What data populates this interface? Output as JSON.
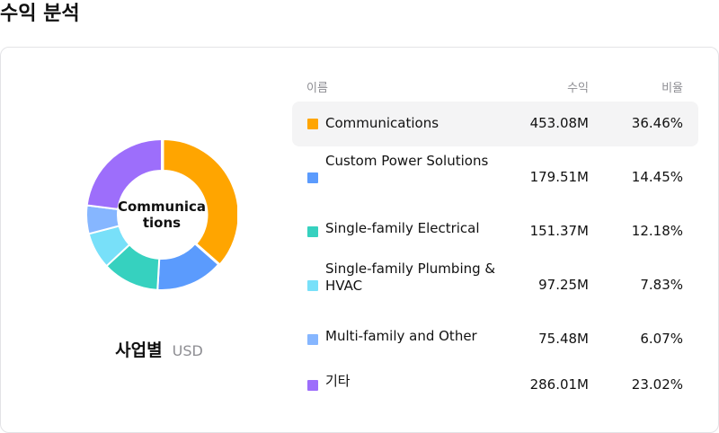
{
  "page": {
    "title": "수익 분석"
  },
  "chart_data": {
    "type": "pie",
    "center_label": "Communications",
    "caption": "사업별",
    "unit": "USD",
    "columns": {
      "name": "이름",
      "value": "수익",
      "percent": "비율"
    },
    "rows": [
      {
        "name": "Communications",
        "value": 453.08,
        "value_label": "453.08M",
        "percent_label": "36.46%",
        "color": "#FFA500"
      },
      {
        "name": "Custom Power Solutions",
        "value": 179.51,
        "value_label": "179.51M",
        "percent_label": "14.45%",
        "color": "#5B9BFD"
      },
      {
        "name": "Single-family Electrical",
        "value": 151.37,
        "value_label": "151.37M",
        "percent_label": "12.18%",
        "color": "#36D1BF"
      },
      {
        "name": "Single-family Plumbing & HVAC",
        "value": 97.25,
        "value_label": "97.25M",
        "percent_label": "7.83%",
        "color": "#78E0F9"
      },
      {
        "name": "Multi-family and Other",
        "value": 75.48,
        "value_label": "75.48M",
        "percent_label": "6.07%",
        "color": "#86B6FF"
      },
      {
        "name": "기타",
        "value": 286.01,
        "value_label": "286.01M",
        "percent_label": "23.02%",
        "color": "#9D6EFB"
      }
    ]
  }
}
